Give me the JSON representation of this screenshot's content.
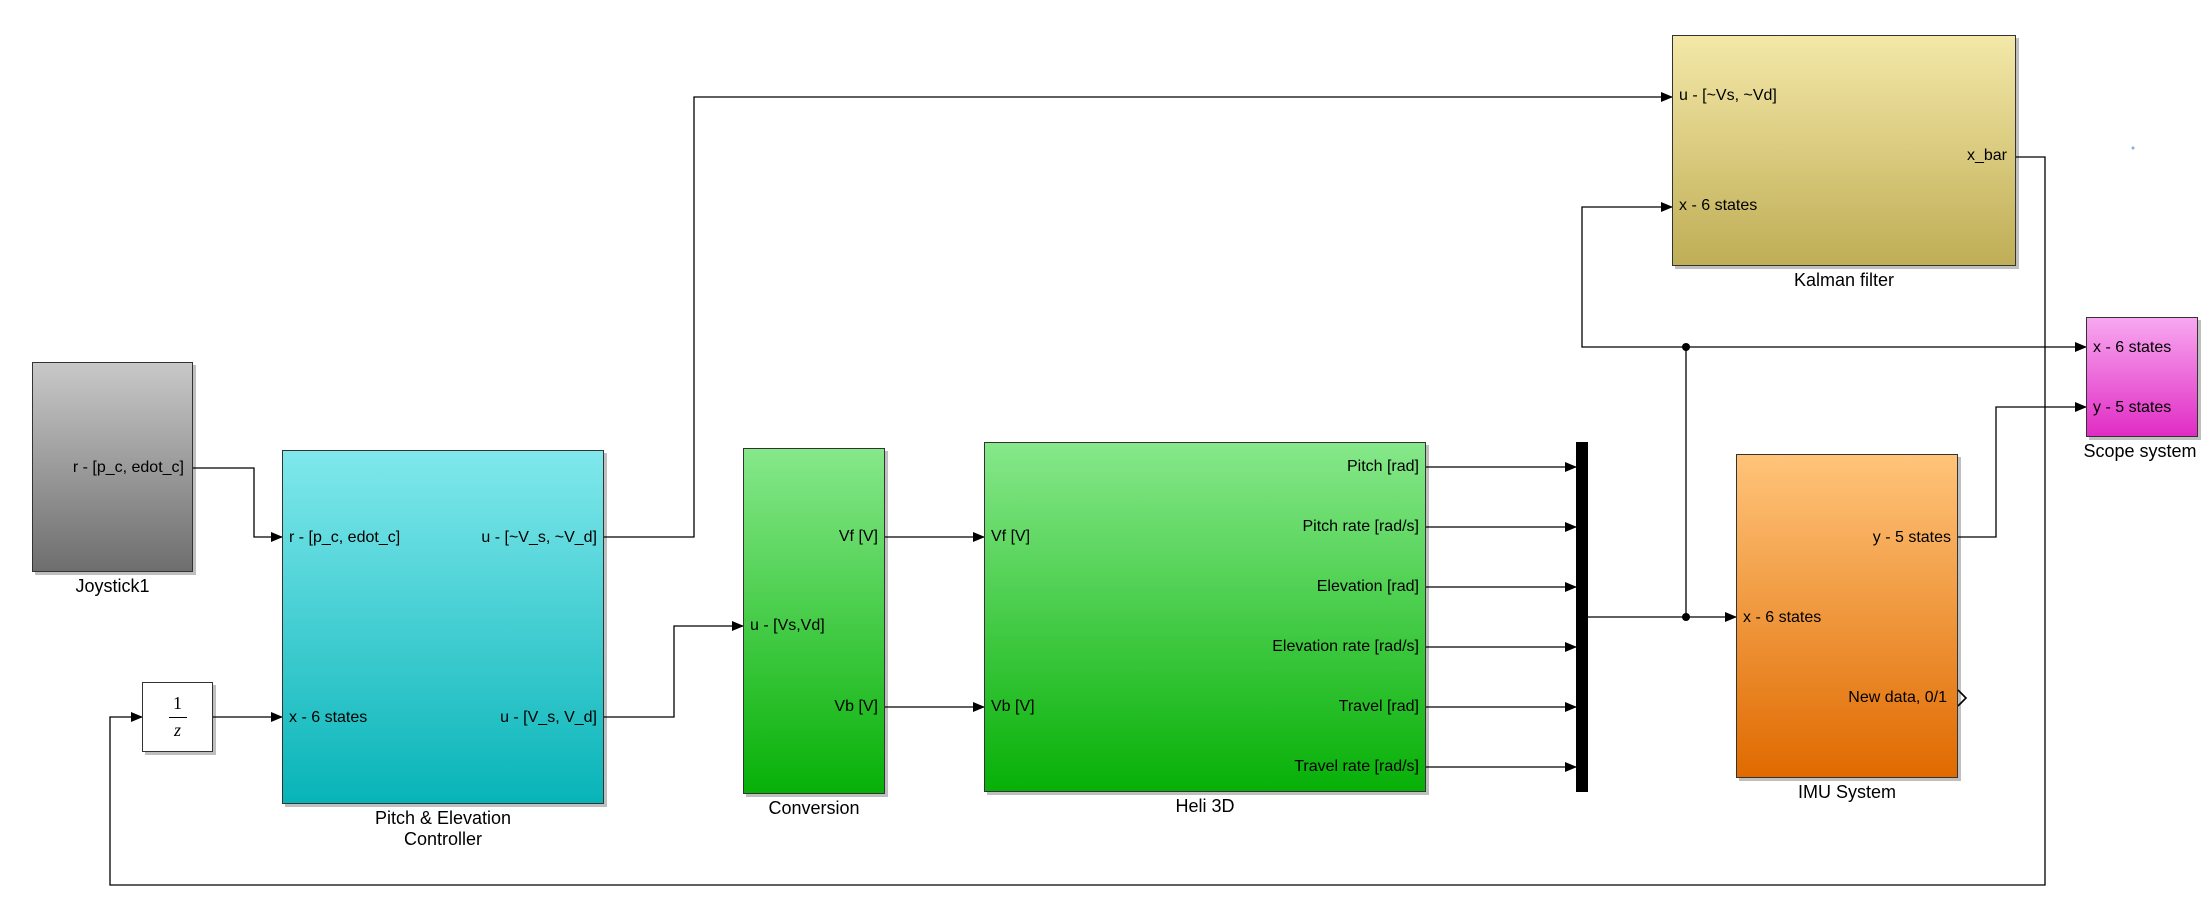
{
  "blocks": {
    "joystick": {
      "name": "Joystick1",
      "out_port": "r - [p_c, edot_c]"
    },
    "controller": {
      "name_line1": "Pitch & Elevation",
      "name_line2": "Controller",
      "in_ports": [
        "r -  [p_c, edot_c]",
        "x - 6 states"
      ],
      "out_ports": [
        "u - [~V_s, ~V_d]",
        "u - [V_s, V_d]"
      ]
    },
    "delay": {
      "numerator": "1",
      "denominator": "z"
    },
    "conversion": {
      "name": "Conversion",
      "in_port": "u - [Vs,Vd]",
      "out_ports": [
        "Vf [V]",
        "Vb [V]"
      ]
    },
    "heli": {
      "name": "Heli 3D",
      "in_ports": [
        "Vf [V]",
        "Vb [V]"
      ],
      "out_ports": [
        "Pitch [rad]",
        "Pitch rate [rad/s]",
        "Elevation [rad]",
        "Elevation rate [rad/s]",
        "Travel [rad]",
        "Travel rate [rad/s]"
      ]
    },
    "kalman": {
      "name": "Kalman filter",
      "in_ports": [
        "u - [~Vs, ~Vd]",
        "x - 6 states"
      ],
      "out_port": "x_bar"
    },
    "imu": {
      "name": "IMU System",
      "in_port": "x - 6 states",
      "out_ports": [
        "y - 5 states",
        "New data, 0/1"
      ]
    },
    "scope": {
      "name": "Scope system",
      "in_ports": [
        "x - 6 states",
        "y - 5 states"
      ]
    }
  },
  "colors": {
    "joystick": "#9a9a9a",
    "controller": "#3fcfd3",
    "conversion": "#3fcf45",
    "heli": "#3fcf45",
    "kalman": "#d9c97a",
    "imu": "#f0943a",
    "scope": "#ec66dc",
    "wire": "#000000"
  }
}
